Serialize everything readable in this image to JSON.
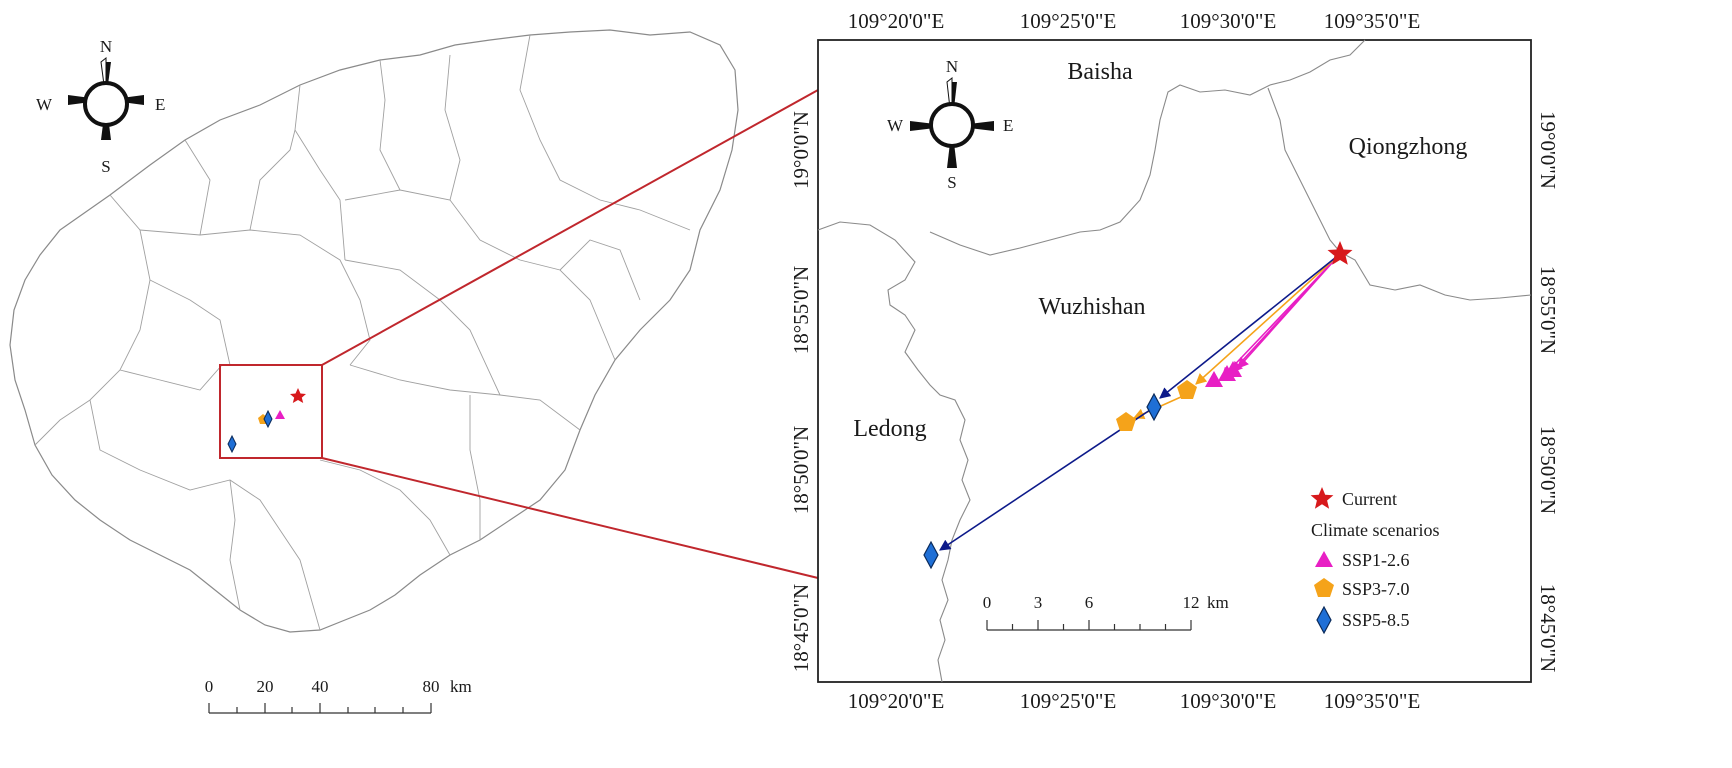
{
  "overview_map": {
    "compass": {
      "n": "N",
      "s": "S",
      "e": "E",
      "w": "W"
    },
    "scale_bar": {
      "ticks": [
        "0",
        "20",
        "40",
        "80"
      ],
      "unit": "km"
    }
  },
  "detail_map": {
    "compass": {
      "n": "N",
      "s": "S",
      "e": "E",
      "w": "W"
    },
    "longitude_labels": [
      "109°20'0\"E",
      "109°25'0\"E",
      "109°30'0\"E",
      "109°35'0\"E"
    ],
    "latitude_labels": [
      "19°0'0\"N",
      "18°55'0\"N",
      "18°50'0\"N",
      "18°45'0\"N"
    ],
    "place_names": {
      "baisha": "Baisha",
      "qiongzhong": "Qiongzhong",
      "wuzhishan": "Wuzhishan",
      "ledong": "Ledong"
    },
    "scale_bar": {
      "ticks": [
        "0",
        "3",
        "6",
        "12"
      ],
      "unit": "km"
    },
    "legend": {
      "current": "Current",
      "heading": "Climate scenarios",
      "items": [
        "SSP1-2.6",
        "SSP3-7.0",
        "SSP5-8.5"
      ]
    },
    "colors": {
      "current": "#d7191c",
      "ssp126": "#e81fc4",
      "ssp370": "#f5a31a",
      "ssp585": "#1f6fd6",
      "ssp585_arrow": "#0d1a8a"
    }
  }
}
